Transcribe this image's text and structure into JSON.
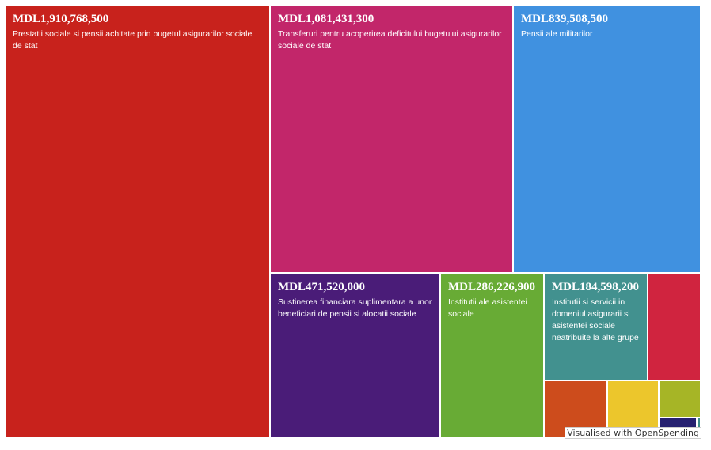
{
  "chart_data": {
    "type": "treemap",
    "currency_prefix": "MDL",
    "items": [
      {
        "amount": "MDL1,910,768,500",
        "value": 1910768500,
        "label": "Prestatii sociale si pensii achitate prin bugetul asigurarilor sociale de stat",
        "color": "#c8221c"
      },
      {
        "amount": "MDL1,081,431,300",
        "value": 1081431300,
        "label": "Transferuri pentru acoperirea deficitului bugetului asigurarilor sociale de stat",
        "color": "#c2266a"
      },
      {
        "amount": "MDL839,508,500",
        "value": 839508500,
        "label": "Pensii ale militarilor",
        "color": "#4091e0"
      },
      {
        "amount": "MDL471,520,000",
        "value": 471520000,
        "label": "Sustinerea financiara suplimentara a unor beneficiari de pensii si alocatii sociale",
        "color": "#4a1c78"
      },
      {
        "amount": "MDL286,226,900",
        "value": 286226900,
        "label": "Institutii ale asistentei sociale",
        "color": "#68ab35"
      },
      {
        "amount": "MDL184,598,200",
        "value": 184598200,
        "label": "Institutii si servicii in domeniul asigurarii si asistentei sociale neatribuite la alte grupe",
        "color": "#42918f"
      },
      {
        "color": "#d0243f"
      },
      {
        "color": "#cd4c1c"
      },
      {
        "color": "#ecc62c"
      },
      {
        "color": "#a6b526"
      },
      {
        "color": "#262170"
      },
      {
        "color": "#3f8e8a"
      }
    ]
  },
  "footer": {
    "credit": "Visualised with OpenSpending"
  }
}
